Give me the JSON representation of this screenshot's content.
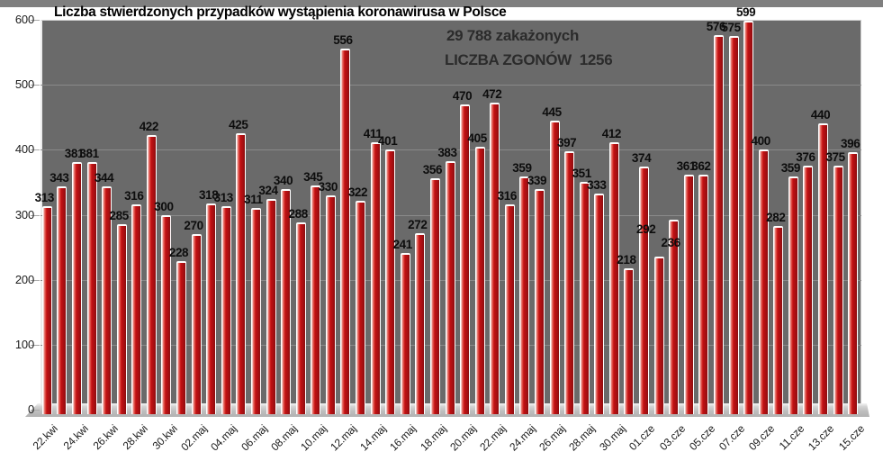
{
  "title": "Liczba stwierdzonych przypadków wystąpienia koronawirusa w Polsce",
  "annotations": {
    "infected_total": "29 788 zakażonych",
    "deaths_total": "LICZBA ZGONÓW  1256"
  },
  "chart_data": {
    "type": "bar",
    "title": "Liczba stwierdzonych przypadków wystąpienia koronawirusa w Polsce",
    "values": [
      313,
      343,
      381,
      381,
      344,
      285,
      316,
      422,
      300,
      228,
      270,
      318,
      313,
      425,
      311,
      324,
      340,
      288,
      345,
      330,
      556,
      322,
      411,
      401,
      241,
      272,
      356,
      383,
      470,
      405,
      472,
      316,
      359,
      339,
      445,
      397,
      351,
      333,
      412,
      218,
      374,
      236,
      292,
      361,
      362,
      576,
      575,
      599,
      400,
      282,
      359,
      376,
      440,
      375,
      396
    ],
    "x_tick_labels": [
      "22.kwi",
      "24.kwi",
      "26.kwi",
      "28.kwi",
      "30.kwi",
      "02.maj",
      "04.maj",
      "06.maj",
      "08.maj",
      "10.maj",
      "12.maj",
      "14.maj",
      "16.maj",
      "18.maj",
      "20.maj",
      "22.maj",
      "24.maj",
      "26.maj",
      "28.maj",
      "30.maj",
      "01.cze",
      "03.cze",
      "05.cze",
      "07.cze",
      "09.cze",
      "11.cze",
      "13.cze",
      "15.cze"
    ],
    "x_tick_every": 2,
    "yticks": [
      0,
      100,
      200,
      300,
      400,
      500,
      600
    ],
    "ylim": [
      0,
      600
    ],
    "grid": true,
    "legend": false,
    "data_labels": true
  },
  "colors": {
    "bar_red": "#c01013",
    "plot_background": "#6a6a6a",
    "gridline": "#8a8a8a",
    "top_strip": "#7f7f7f",
    "label_text": "#0d0d0d"
  }
}
